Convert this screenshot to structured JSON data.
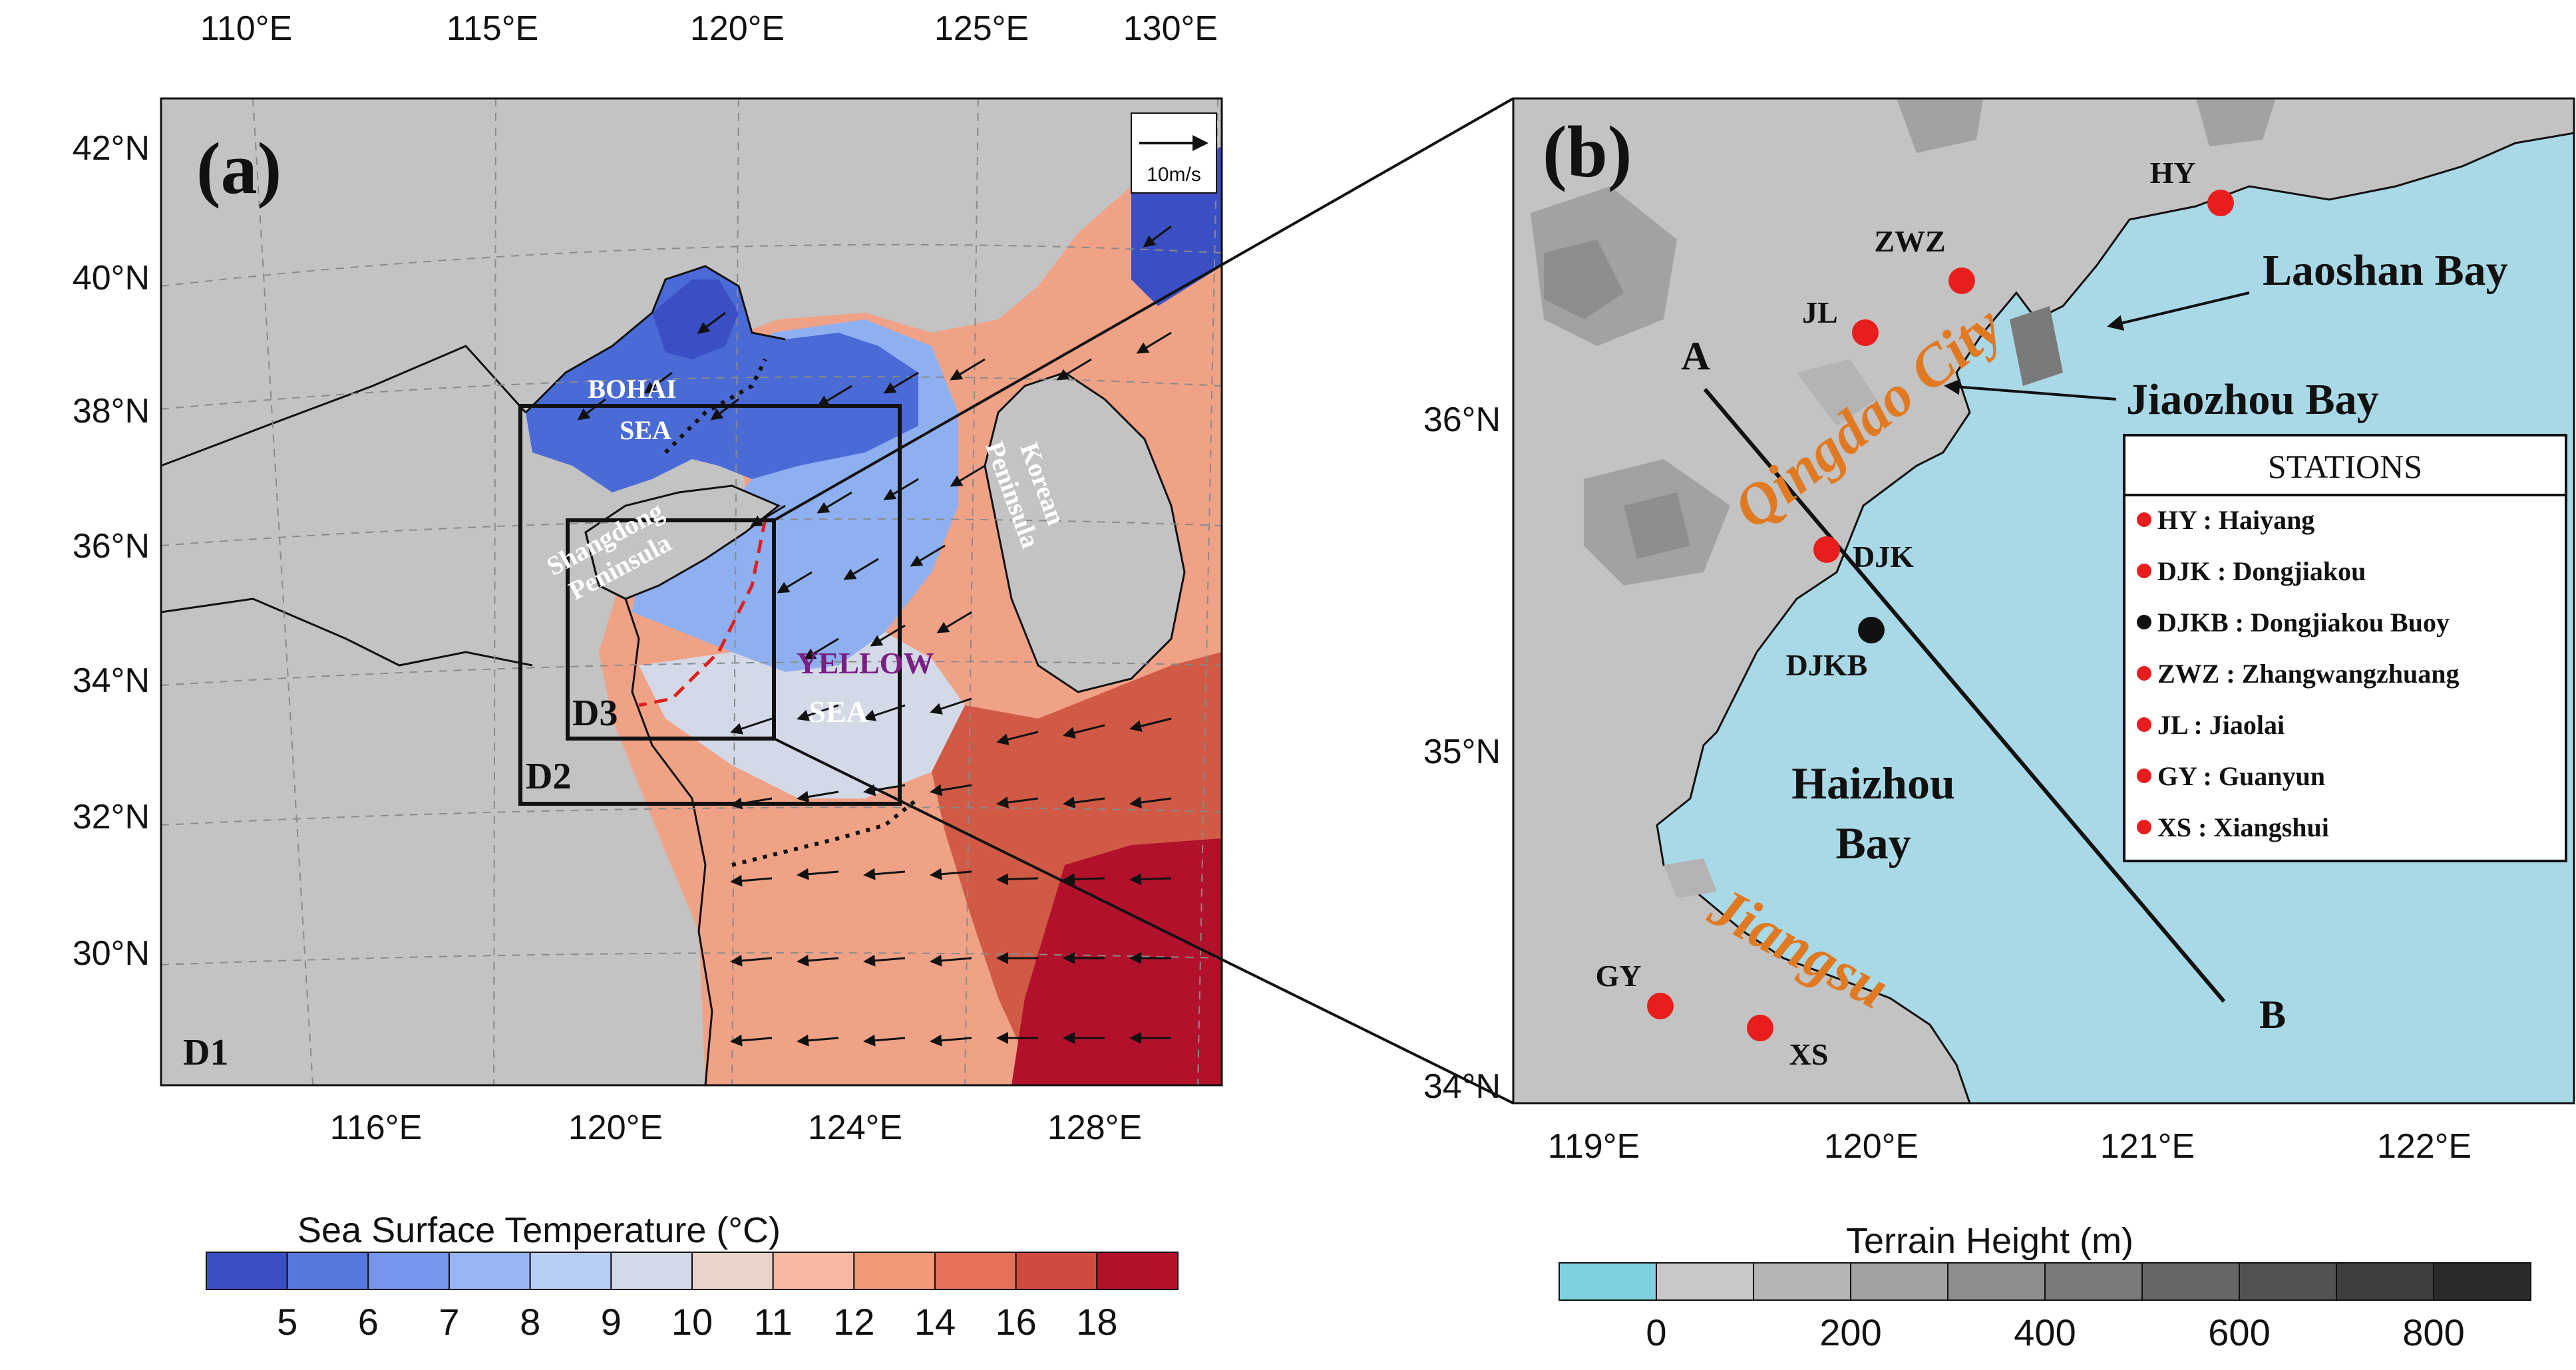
{
  "panel_a": {
    "label": "(a)",
    "top_lon_ticks": [
      "110°E",
      "115°E",
      "120°E",
      "125°E",
      "130°E"
    ],
    "bottom_lon_ticks": [
      "116°E",
      "120°E",
      "124°E",
      "128°E"
    ],
    "lat_ticks": [
      "42°N",
      "40°N",
      "38°N",
      "36°N",
      "34°N",
      "32°N",
      "30°N"
    ],
    "domain_labels": {
      "d1": "D1",
      "d2": "D2",
      "d3": "D3"
    },
    "vector_key": "10m/s",
    "place_labels": {
      "bohai_1": "BOHAI",
      "bohai_2": "SEA",
      "shandong_1": "Shangdong",
      "shandong_2": "Peninsula",
      "korean_1": "Korean",
      "korean_2": "Peninsula",
      "yellow_1": "YELLOW",
      "yellow_2": "SEA"
    },
    "colorbar": {
      "title": "Sea Surface Temperature  (°C)",
      "ticks": [
        "5",
        "6",
        "7",
        "8",
        "9",
        "10",
        "11",
        "12",
        "14",
        "16",
        "18"
      ],
      "colors": [
        "#3b4fc4",
        "#5577de",
        "#7496ea",
        "#97b4f4",
        "#b8cdf5",
        "#d3d9e6",
        "#ead3c8",
        "#f6b8a2",
        "#f09877",
        "#e37258",
        "#cf4b40",
        "#b1112a"
      ]
    }
  },
  "panel_b": {
    "label": "(b)",
    "lon_ticks": [
      "119°E",
      "120°E",
      "121°E",
      "122°E"
    ],
    "lat_ticks": [
      "36°N",
      "35°N",
      "34°N"
    ],
    "cross_section": {
      "start": "A",
      "end": "B"
    },
    "place_labels": {
      "laoshan": "Laoshan Bay",
      "jiaozhou": "Jiaozhou Bay",
      "qingdao": "Qingdao City",
      "haizhou_1": "Haizhou",
      "haizhou_2": "Bay",
      "jiangsu": "Jiangsu"
    },
    "station_codes": {
      "hy": "HY",
      "zwz": "ZWZ",
      "jl": "JL",
      "djk": "DJK",
      "djkb": "DJKB",
      "gy": "GY",
      "xs": "XS"
    },
    "legend": {
      "title": "STATIONS",
      "items": [
        "HY : Haiyang",
        "DJK : Dongjiakou",
        "DJKB : Dongjiakou Buoy",
        "ZWZ : Zhangwangzhuang",
        "JL : Jiaolai",
        "GY : Guanyun",
        "XS : Xiangshui"
      ],
      "marker_colors": [
        "#e81e1e",
        "#e81e1e",
        "#111111",
        "#e81e1e",
        "#e81e1e",
        "#e81e1e",
        "#e81e1e"
      ]
    },
    "colorbar": {
      "title": "Terrain Height  (m)",
      "ticks": [
        "0",
        "200",
        "400",
        "600",
        "800"
      ],
      "colors": [
        "#7fd0e0",
        "#c8c8c8",
        "#b4b4b4",
        "#a2a2a2",
        "#8e8e8e",
        "#7a7a7a",
        "#666666",
        "#525252",
        "#3e3e3e",
        "#2a2a2a"
      ]
    }
  },
  "colors": {
    "land": "#c3c3c3",
    "sea_b": "#a9d9e6",
    "station": "#e81e1e",
    "orange_label": "#e07a22",
    "sea_label": "#7a1e82"
  }
}
